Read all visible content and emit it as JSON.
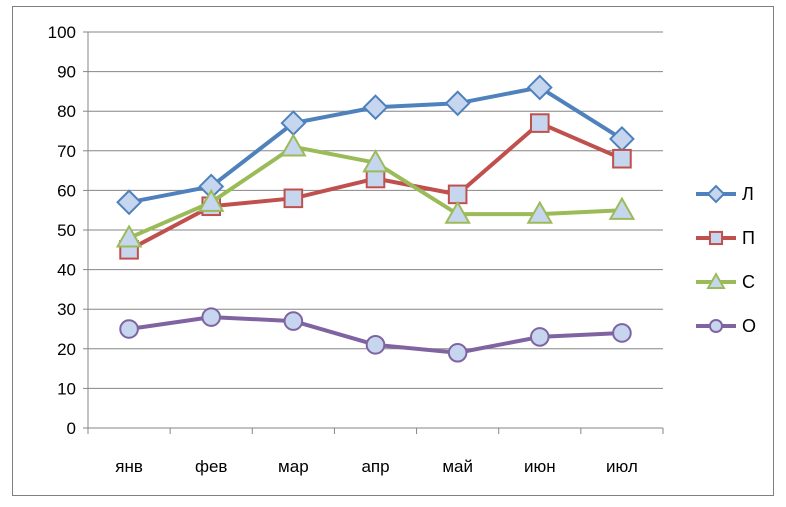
{
  "chart_data": {
    "type": "line",
    "categories": [
      "янв",
      "фев",
      "мар",
      "апр",
      "май",
      "июн",
      "июл"
    ],
    "ylim": [
      0,
      100
    ],
    "yticks": [
      0,
      10,
      20,
      30,
      40,
      50,
      60,
      70,
      80,
      90,
      100
    ],
    "grid": true,
    "legend": "right",
    "series": [
      {
        "name": "Л",
        "values": [
          57,
          61,
          77,
          81,
          82,
          86,
          73
        ],
        "color": "#4f81bd",
        "fill": "#c6d6ee",
        "marker": "diamond"
      },
      {
        "name": "П",
        "values": [
          45,
          56,
          58,
          63,
          59,
          77,
          68
        ],
        "color": "#c0504d",
        "fill": "#c6d6ee",
        "marker": "square"
      },
      {
        "name": "С",
        "values": [
          48,
          57,
          71,
          67,
          54,
          54,
          55
        ],
        "color": "#9bbb59",
        "fill": "#c6d6ee",
        "marker": "triangle"
      },
      {
        "name": "О",
        "values": [
          25,
          28,
          27,
          21,
          19,
          23,
          24
        ],
        "color": "#8064a2",
        "fill": "#c6d6ee",
        "marker": "circle"
      }
    ]
  }
}
